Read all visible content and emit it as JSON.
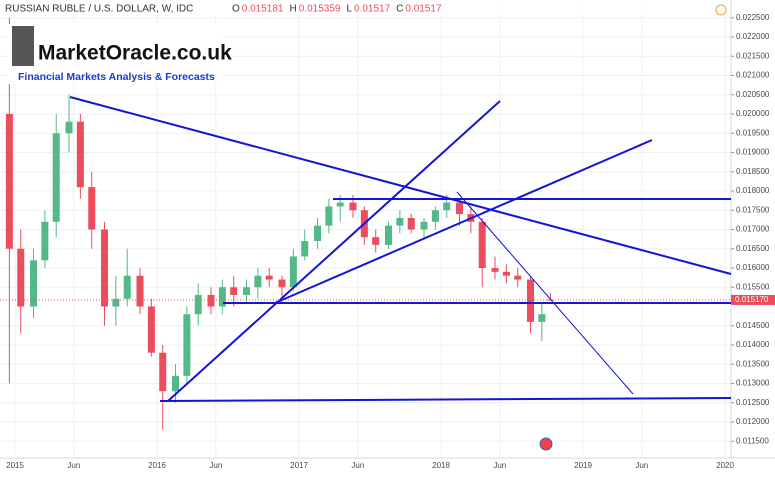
{
  "chart_data": {
    "type": "candlestick",
    "title": "RUSSIAN RUBLE / U.S. DOLLAR, W, IDC",
    "ohlc_header": [
      {
        "label": "O",
        "value": 0.015181
      },
      {
        "label": "H",
        "value": 0.015359
      },
      {
        "label": "L",
        "value": 0.01517
      },
      {
        "label": "C",
        "value": 0.01517
      }
    ],
    "logo": "MarketOracle.co.uk",
    "logo_subtitle": "Financial Markets Analysis & Forecasts",
    "last_price": {
      "value": 0.01517,
      "label": "0.015170"
    },
    "up_color": "#53b987",
    "down_color": "#eb4d5c",
    "x": [
      2014.96,
      2015.04,
      2015.13,
      2015.21,
      2015.29,
      2015.38,
      2015.46,
      2015.54,
      2015.63,
      2015.71,
      2015.79,
      2015.88,
      2015.96,
      2016.04,
      2016.13,
      2016.21,
      2016.29,
      2016.38,
      2016.46,
      2016.54,
      2016.63,
      2016.71,
      2016.79,
      2016.88,
      2016.96,
      2017.04,
      2017.13,
      2017.21,
      2017.29,
      2017.38,
      2017.46,
      2017.54,
      2017.63,
      2017.71,
      2017.79,
      2017.88,
      2017.96,
      2018.04,
      2018.13,
      2018.21,
      2018.29,
      2018.38,
      2018.46,
      2018.54,
      2018.63,
      2018.71,
      2018.77
    ],
    "open": [
      0.02,
      0.0165,
      0.015,
      0.0162,
      0.0172,
      0.0195,
      0.0198,
      0.0181,
      0.017,
      0.015,
      0.0152,
      0.0158,
      0.015,
      0.0138,
      0.0128,
      0.0132,
      0.0148,
      0.0153,
      0.015,
      0.0155,
      0.0153,
      0.0155,
      0.0158,
      0.0157,
      0.0155,
      0.0163,
      0.0167,
      0.0171,
      0.0176,
      0.0177,
      0.0175,
      0.0168,
      0.0166,
      0.0171,
      0.0173,
      0.017,
      0.0172,
      0.0175,
      0.0177,
      0.0174,
      0.0172,
      0.016,
      0.0159,
      0.0158,
      0.0157,
      0.0146,
      0.015181
    ],
    "high": [
      0.0225,
      0.017,
      0.0165,
      0.0175,
      0.02,
      0.0205,
      0.02,
      0.0185,
      0.0172,
      0.0158,
      0.0165,
      0.016,
      0.0152,
      0.014,
      0.0135,
      0.015,
      0.0156,
      0.0155,
      0.0157,
      0.0158,
      0.0157,
      0.016,
      0.016,
      0.0158,
      0.0165,
      0.017,
      0.0173,
      0.0178,
      0.0179,
      0.0179,
      0.0176,
      0.017,
      0.0172,
      0.0175,
      0.0174,
      0.0173,
      0.0176,
      0.0179,
      0.0178,
      0.0176,
      0.0173,
      0.0163,
      0.0161,
      0.016,
      0.0158,
      0.0151,
      0.015359
    ],
    "low": [
      0.013,
      0.0143,
      0.0147,
      0.016,
      0.0168,
      0.019,
      0.0178,
      0.0165,
      0.0145,
      0.0145,
      0.015,
      0.0148,
      0.0137,
      0.0118,
      0.0125,
      0.013,
      0.0145,
      0.0148,
      0.0148,
      0.015,
      0.0151,
      0.0152,
      0.0155,
      0.0151,
      0.0154,
      0.0162,
      0.0165,
      0.0169,
      0.0172,
      0.0173,
      0.0166,
      0.0164,
      0.0165,
      0.0169,
      0.0169,
      0.0168,
      0.017,
      0.0173,
      0.0171,
      0.0169,
      0.0155,
      0.0157,
      0.0156,
      0.0155,
      0.0143,
      0.0141,
      0.01517
    ],
    "close": [
      0.0165,
      0.015,
      0.0162,
      0.0172,
      0.0195,
      0.0198,
      0.0181,
      0.017,
      0.015,
      0.0152,
      0.0158,
      0.015,
      0.0138,
      0.0128,
      0.0132,
      0.0148,
      0.0153,
      0.015,
      0.0155,
      0.0153,
      0.0155,
      0.0158,
      0.0157,
      0.0155,
      0.0163,
      0.0167,
      0.0171,
      0.0176,
      0.0177,
      0.0175,
      0.0168,
      0.0166,
      0.0171,
      0.0173,
      0.017,
      0.0172,
      0.0175,
      0.0177,
      0.0174,
      0.0172,
      0.016,
      0.0159,
      0.0158,
      0.0157,
      0.0146,
      0.0148,
      0.01517
    ],
    "xlim": [
      2014.894,
      2020.035
    ],
    "xticks": [
      {
        "value": 2015,
        "label": "2015"
      },
      {
        "value": 2015.414,
        "label": "Jun"
      },
      {
        "value": 2016,
        "label": "2016"
      },
      {
        "value": 2016.414,
        "label": "Jun"
      },
      {
        "value": 2017,
        "label": "2017"
      },
      {
        "value": 2017.414,
        "label": "Jun"
      },
      {
        "value": 2018,
        "label": "2018"
      },
      {
        "value": 2018.414,
        "label": "Jun"
      },
      {
        "value": 2019,
        "label": "2019"
      },
      {
        "value": 2019.414,
        "label": "Jun"
      },
      {
        "value": 2020,
        "label": "2020"
      }
    ],
    "ylim": [
      0.011065,
      0.022961
    ],
    "yticks": [
      {
        "value": 0.0115,
        "label": "0.011500"
      },
      {
        "value": 0.012,
        "label": "0.012000"
      },
      {
        "value": 0.0125,
        "label": "0.012500"
      },
      {
        "value": 0.013,
        "label": "0.013000"
      },
      {
        "value": 0.0135,
        "label": "0.013500"
      },
      {
        "value": 0.014,
        "label": "0.014000"
      },
      {
        "value": 0.0145,
        "label": "0.014500"
      },
      {
        "value": 0.0155,
        "label": "0.015500"
      },
      {
        "value": 0.016,
        "label": "0.016000"
      },
      {
        "value": 0.0165,
        "label": "0.016500"
      },
      {
        "value": 0.017,
        "label": "0.017000"
      },
      {
        "value": 0.0175,
        "label": "0.017500"
      },
      {
        "value": 0.018,
        "label": "0.018000"
      },
      {
        "value": 0.0185,
        "label": "0.018500"
      },
      {
        "value": 0.019,
        "label": "0.019000"
      },
      {
        "value": 0.0195,
        "label": "0.019500"
      },
      {
        "value": 0.02,
        "label": "0.020000"
      },
      {
        "value": 0.0205,
        "label": "0.020500"
      },
      {
        "value": 0.021,
        "label": "0.021000"
      },
      {
        "value": 0.0215,
        "label": "0.021500"
      },
      {
        "value": 0.022,
        "label": "0.022000"
      },
      {
        "value": 0.0225,
        "label": "0.022500"
      }
    ],
    "grid": true
  }
}
